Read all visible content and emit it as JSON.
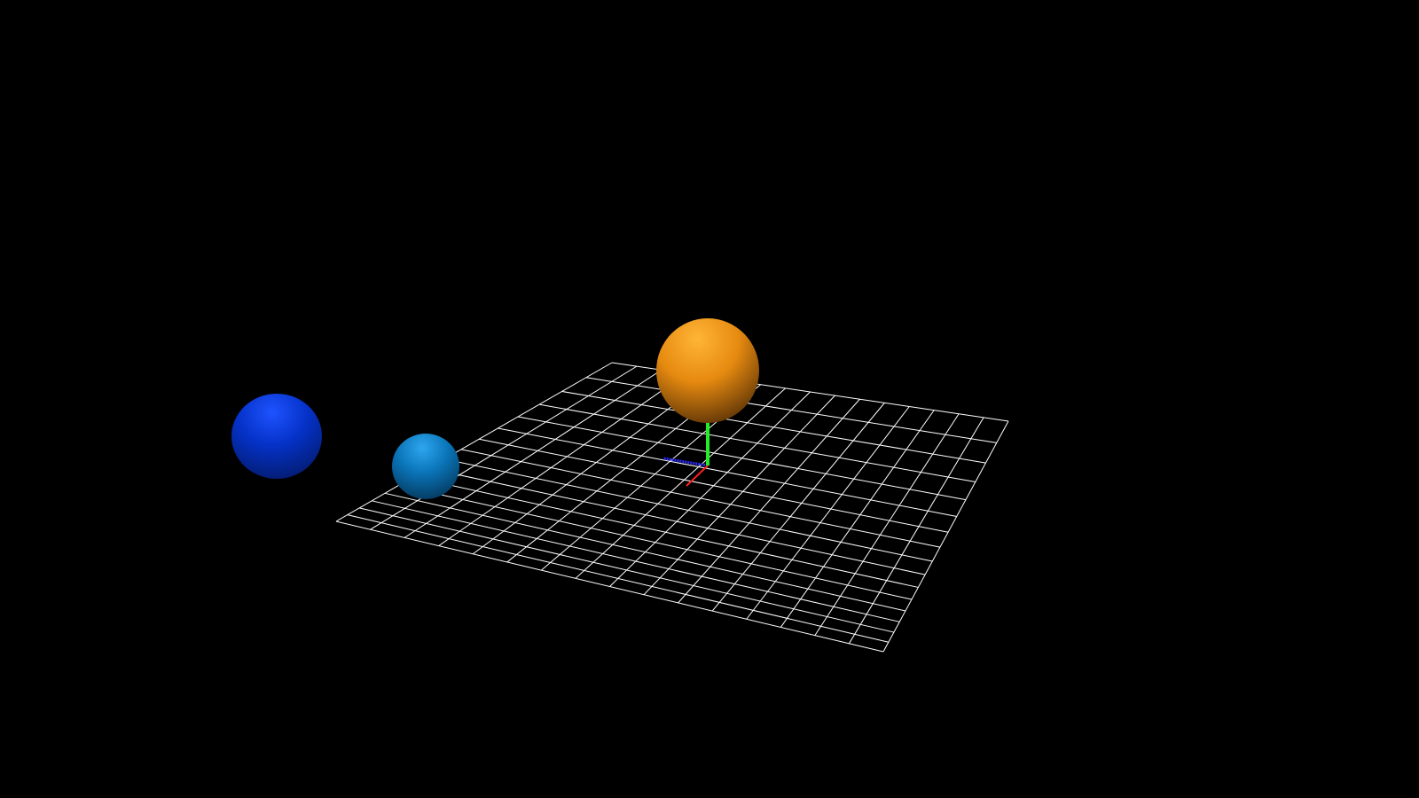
{
  "scene": {
    "background_color": "#000000",
    "grid": {
      "color": "#ffffff",
      "divisions": 16
    },
    "axes_helper": {
      "x_color": "#ff2020",
      "y_color": "#22ee22",
      "z_color": "#2a2aff"
    },
    "spheres": [
      {
        "name": "blue-sphere",
        "color_light": "#1e53ff",
        "color_mid": "#0532c8",
        "color_dark": "#031a6a"
      },
      {
        "name": "light-blue-sphere",
        "color_light": "#2ea6ee",
        "color_mid": "#0a74b8",
        "color_dark": "#043456"
      },
      {
        "name": "orange-sphere",
        "color_light": "#ffb536",
        "color_mid": "#e68a10",
        "color_dark": "#4e2a05"
      }
    ]
  }
}
